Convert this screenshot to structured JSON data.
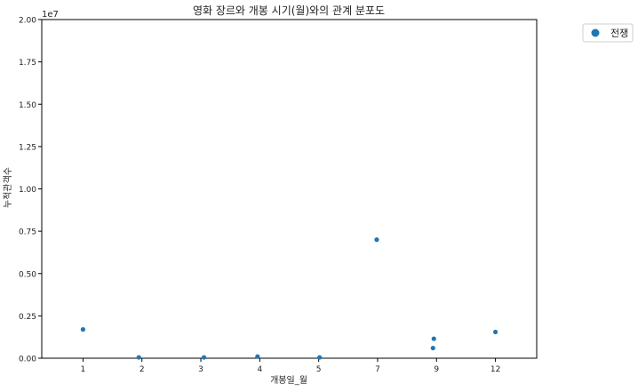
{
  "chart_data": {
    "type": "scatter",
    "title": "영화 장르와 개봉 시기(월)와의 관계 분포도",
    "xlabel": "개봉일_월",
    "ylabel": "누적관객수",
    "y_scale_label": "1e7",
    "categories": [
      "1",
      "2",
      "3",
      "4",
      "5",
      "7",
      "9",
      "12"
    ],
    "yticks": [
      0,
      0.25,
      0.5,
      0.75,
      1.0,
      1.25,
      1.5,
      1.75,
      2.0
    ],
    "ytick_labels": [
      "0.00",
      "0.25",
      "0.50",
      "0.75",
      "1.00",
      "1.25",
      "1.50",
      "1.75",
      "2.00"
    ],
    "ylim": [
      0,
      2.0
    ],
    "grid": false,
    "legend": {
      "position": "top-right-outside"
    },
    "series": [
      {
        "name": "전쟁",
        "color": "#1f77b4",
        "points": [
          {
            "x": "1",
            "y": 0.17
          },
          {
            "x": "2",
            "y": 0.005
          },
          {
            "x": "3",
            "y": 0.005
          },
          {
            "x": "4",
            "y": 0.01
          },
          {
            "x": "5",
            "y": 0.005
          },
          {
            "x": "7",
            "y": 0.7
          },
          {
            "x": "9",
            "y": 0.115
          },
          {
            "x": "9",
            "y": 0.06
          },
          {
            "x": "12",
            "y": 0.155
          }
        ]
      }
    ]
  }
}
